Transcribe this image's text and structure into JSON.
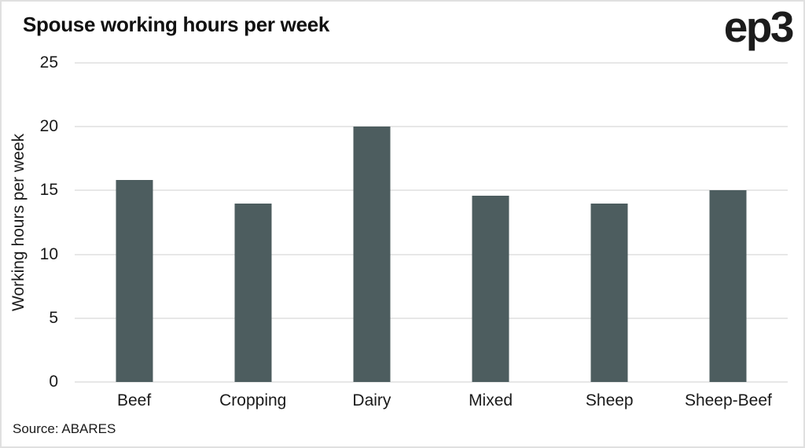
{
  "header": {
    "title": "Spouse working hours per week",
    "logo": "ep3"
  },
  "footer": {
    "source": "Source: ABARES"
  },
  "colors": {
    "bar": "#4D5D5F",
    "gridline": "#E7E7E7",
    "text": "#1A1A1A",
    "background": "#FFFFFF",
    "frame_border": "#E0E0E0"
  },
  "chart_data": {
    "type": "bar",
    "title": "Spouse working hours per week",
    "categories": [
      "Beef",
      "Cropping",
      "Dairy",
      "Mixed",
      "Sheep",
      "Sheep-Beef"
    ],
    "values": [
      15.8,
      14,
      20,
      14.6,
      14,
      15
    ],
    "xlabel": "",
    "ylabel": "Working hours per week",
    "ylim": [
      0,
      25
    ],
    "yticks": [
      0,
      5,
      10,
      15,
      20,
      25
    ],
    "grid": true,
    "legend": false,
    "bar_color": "#4D5D5F",
    "source": "Source: ABARES"
  }
}
